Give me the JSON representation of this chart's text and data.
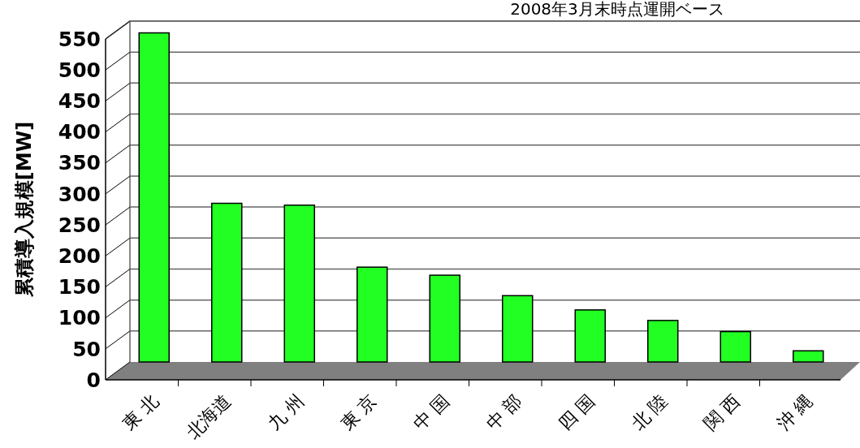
{
  "chart_data": {
    "type": "bar",
    "title": "2008年3月末時点運開ベース",
    "ylabel": "累積導入規模[MW]",
    "categories": [
      "東 北",
      "北海道",
      "九 州",
      "東 京",
      "中 国",
      "中 部",
      "四 国",
      "北 陸",
      "関 西",
      "沖 縄"
    ],
    "values": [
      531,
      256,
      253,
      153,
      140,
      107,
      84,
      67,
      49,
      18
    ],
    "color": "#22ff22",
    "ylim": [
      0,
      550
    ],
    "yticks": [
      0,
      50,
      100,
      150,
      200,
      250,
      300,
      350,
      400,
      450,
      500,
      550
    ],
    "grid": "y"
  }
}
